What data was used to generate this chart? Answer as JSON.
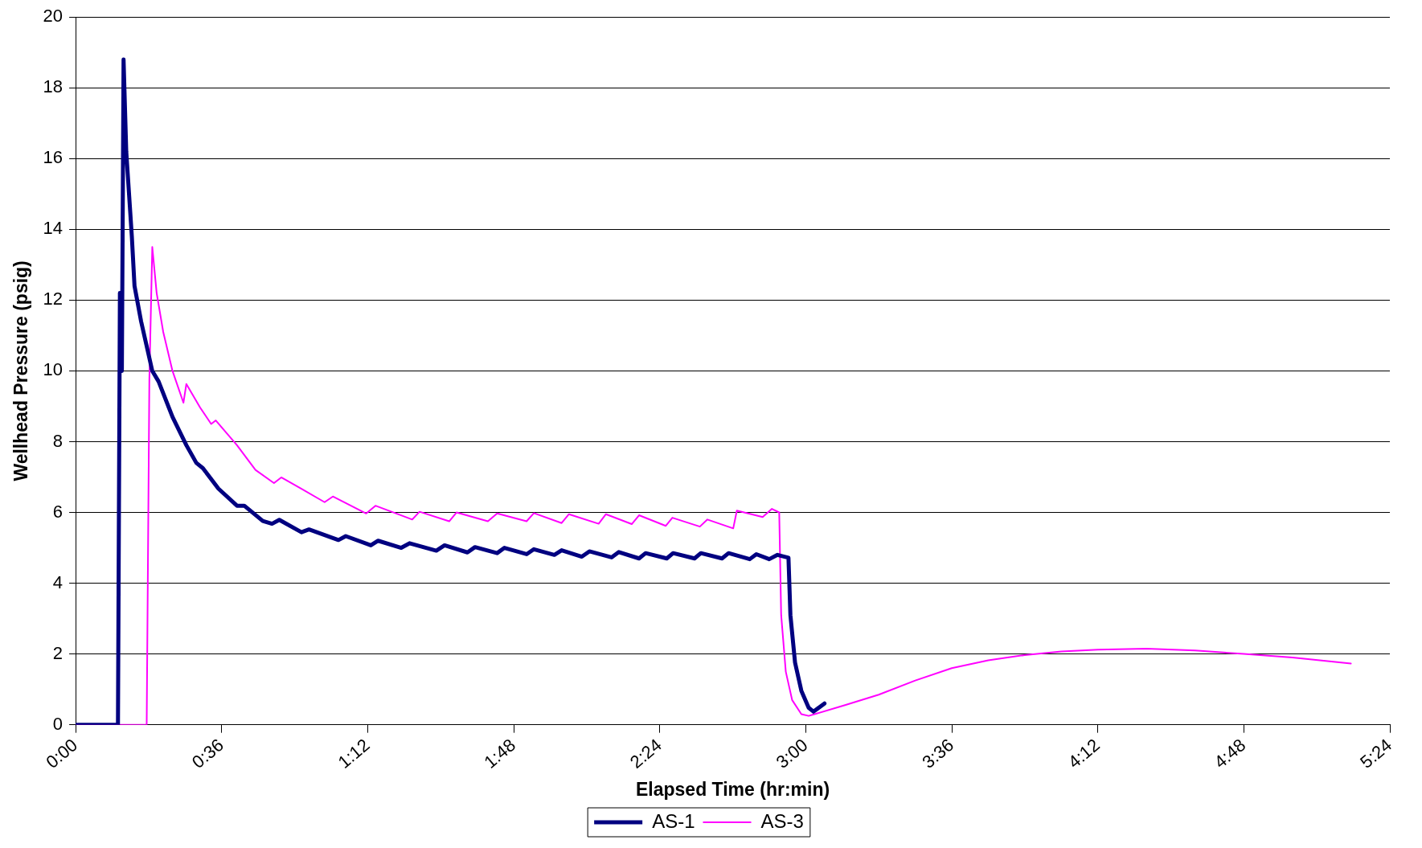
{
  "chart_data": {
    "type": "line",
    "xlabel": "Elapsed Time (hr:min)",
    "ylabel": "Wellhead Pressure (psig)",
    "xlim": [
      0,
      5.4
    ],
    "xticks": [
      {
        "value": 0,
        "label": "0:00"
      },
      {
        "value": 0.6,
        "label": "0:36"
      },
      {
        "value": 1.2,
        "label": "1:12"
      },
      {
        "value": 1.8,
        "label": "1:48"
      },
      {
        "value": 2.4,
        "label": "2:24"
      },
      {
        "value": 3,
        "label": "3:00"
      },
      {
        "value": 3.6,
        "label": "3:36"
      },
      {
        "value": 4.2,
        "label": "4:12"
      },
      {
        "value": 4.8,
        "label": "4:48"
      },
      {
        "value": 5.4,
        "label": "5:24"
      }
    ],
    "ylim": [
      0,
      20
    ],
    "yticks": [
      0,
      2,
      4,
      6,
      8,
      10,
      12,
      14,
      16,
      18,
      20
    ],
    "grid": "y",
    "legend": "bottom",
    "marker": "none",
    "line_style": "solid",
    "series": [
      {
        "name": "AS-1",
        "color": "#000080",
        "x": [
          0,
          0.174,
          0.182,
          0.19,
          0.197,
          0.208,
          0.231,
          0.242,
          0.269,
          0.315,
          0.341,
          0.398,
          0.455,
          0.496,
          0.523,
          0.587,
          0.663,
          0.693,
          0.769,
          0.807,
          0.837,
          0.928,
          0.959,
          1.08,
          1.11,
          1.213,
          1.243,
          1.338,
          1.372,
          1.482,
          1.516,
          1.61,
          1.641,
          1.732,
          1.762,
          1.853,
          1.883,
          1.967,
          1.997,
          2.08,
          2.111,
          2.202,
          2.232,
          2.315,
          2.342,
          2.429,
          2.455,
          2.543,
          2.569,
          2.656,
          2.683,
          2.77,
          2.797,
          2.85,
          2.884,
          2.929,
          2.937,
          2.956,
          2.982,
          3.012,
          3.032,
          3.077
        ],
        "values": [
          0,
          0,
          12.2,
          10,
          18.8,
          16.2,
          13.8,
          12.4,
          11.4,
          10,
          9.7,
          8.7,
          7.9,
          7.4,
          7.25,
          6.67,
          6.19,
          6.19,
          5.76,
          5.68,
          5.79,
          5.44,
          5.52,
          5.22,
          5.33,
          5.07,
          5.2,
          5,
          5.13,
          4.92,
          5.07,
          4.87,
          5.02,
          4.85,
          5,
          4.82,
          4.96,
          4.8,
          4.93,
          4.75,
          4.9,
          4.73,
          4.88,
          4.7,
          4.85,
          4.7,
          4.85,
          4.7,
          4.85,
          4.7,
          4.85,
          4.68,
          4.82,
          4.68,
          4.8,
          4.72,
          3.1,
          1.76,
          0.96,
          0.48,
          0.37,
          0.6
        ]
      },
      {
        "name": "AS-3",
        "color": "#ff00ff",
        "x": [
          0,
          0.292,
          0.303,
          0.315,
          0.333,
          0.36,
          0.398,
          0.443,
          0.455,
          0.512,
          0.557,
          0.576,
          0.663,
          0.739,
          0.815,
          0.845,
          0.928,
          1.023,
          1.057,
          1.194,
          1.232,
          1.383,
          1.413,
          1.535,
          1.565,
          1.694,
          1.732,
          1.853,
          1.883,
          1.997,
          2.027,
          2.149,
          2.179,
          2.285,
          2.315,
          2.425,
          2.452,
          2.565,
          2.596,
          2.702,
          2.717,
          2.823,
          2.861,
          2.891,
          2.899,
          2.918,
          2.944,
          2.982,
          3.012,
          3.164,
          3.3,
          3.45,
          3.6,
          3.75,
          3.9,
          4.05,
          4.2,
          4.4,
          4.6,
          4.8,
          5,
          5.24
        ],
        "values": [
          0,
          0,
          9.76,
          13.5,
          12.2,
          11.1,
          10,
          9.1,
          9.63,
          8.96,
          8.5,
          8.6,
          7.9,
          7.2,
          6.83,
          6.99,
          6.67,
          6.29,
          6.45,
          5.97,
          6.19,
          5.8,
          6.02,
          5.75,
          6,
          5.75,
          5.97,
          5.75,
          5.98,
          5.7,
          5.95,
          5.68,
          5.95,
          5.67,
          5.92,
          5.62,
          5.85,
          5.6,
          5.8,
          5.55,
          6.05,
          5.87,
          6.1,
          6,
          3.1,
          1.5,
          0.7,
          0.3,
          0.25,
          0.56,
          0.85,
          1.25,
          1.6,
          1.82,
          1.97,
          2.07,
          2.12,
          2.15,
          2.1,
          2,
          1.9,
          1.73
        ]
      }
    ]
  }
}
